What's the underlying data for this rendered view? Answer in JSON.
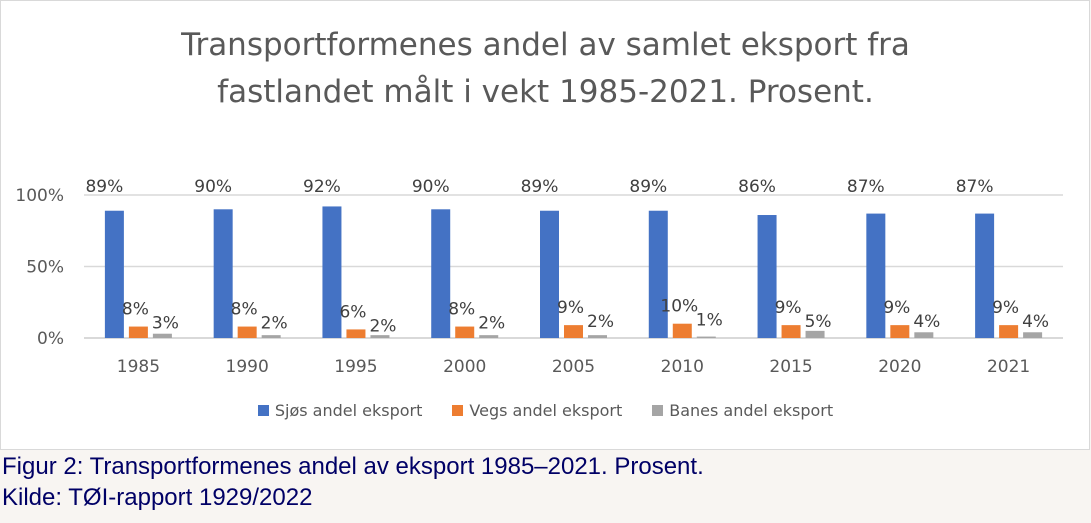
{
  "chart_data": {
    "type": "bar",
    "title": "Transportformenes andel av samlet eksport fra\nfastlandet målt i vekt 1985-2021. Prosent.",
    "categories": [
      "1985",
      "1990",
      "1995",
      "2000",
      "2005",
      "2010",
      "2015",
      "2020",
      "2021"
    ],
    "series": [
      {
        "name": "Sjøs andel eksport",
        "color": "#4472c4",
        "values": [
          89,
          90,
          92,
          90,
          89,
          89,
          86,
          87,
          87
        ]
      },
      {
        "name": "Vegs andel eksport",
        "color": "#ed7d31",
        "values": [
          8,
          8,
          6,
          8,
          9,
          10,
          9,
          9,
          9
        ]
      },
      {
        "name": "Banes andel eksport",
        "color": "#a5a5a5",
        "values": [
          3,
          2,
          2,
          2,
          2,
          1,
          5,
          4,
          4
        ]
      }
    ],
    "yticks": [
      "0%",
      "50%",
      "100%"
    ],
    "ylim": [
      0,
      100
    ],
    "grid": true,
    "legend": "bottom",
    "data_label_suffix": "%"
  },
  "caption": {
    "line1": "Figur 2: Transportformenes andel av eksport 1985–2021. Prosent.",
    "line2": "Kilde: TØI-rapport 1929/2022"
  }
}
